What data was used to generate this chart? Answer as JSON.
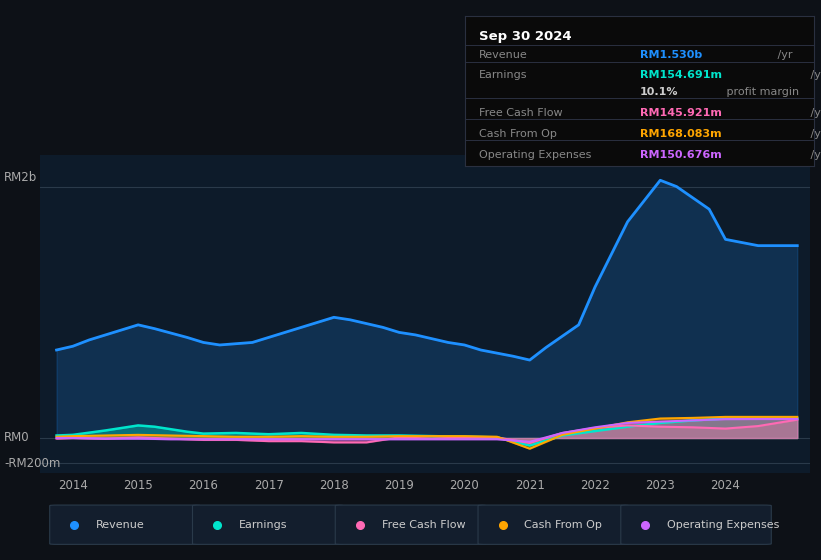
{
  "bg_color": "#0d1117",
  "chart_bg": "#0d1b2a",
  "title": "Sep 30 2024",
  "info_rows": [
    {
      "label": "Revenue",
      "value": "RM1.530b",
      "unit": " /yr",
      "value_color": "#1e90ff",
      "bold_value": true
    },
    {
      "label": "Earnings",
      "value": "RM154.691m",
      "unit": " /yr",
      "value_color": "#00e5cc",
      "bold_value": true
    },
    {
      "label": "",
      "value": "10.1%",
      "unit": " profit margin",
      "value_color": "#cccccc",
      "bold_value": true
    },
    {
      "label": "Free Cash Flow",
      "value": "RM145.921m",
      "unit": " /yr",
      "value_color": "#ff69b4",
      "bold_value": true
    },
    {
      "label": "Cash From Op",
      "value": "RM168.083m",
      "unit": " /yr",
      "value_color": "#ffa500",
      "bold_value": true
    },
    {
      "label": "Operating Expenses",
      "value": "RM150.676m",
      "unit": " /yr",
      "value_color": "#cc66ff",
      "bold_value": true
    }
  ],
  "ylabel_top": "RM2b",
  "ylabel_mid": "RM0",
  "ylabel_bot": "-RM200m",
  "xlim": [
    2013.5,
    2025.3
  ],
  "ylim_min": -0.28,
  "ylim_max": 2.25,
  "y_zero": 0.0,
  "y_top": 2.0,
  "y_bot": -0.2,
  "x_ticks": [
    2014,
    2015,
    2016,
    2017,
    2018,
    2019,
    2020,
    2021,
    2022,
    2023,
    2024
  ],
  "legend": [
    {
      "label": "Revenue",
      "color": "#1e90ff"
    },
    {
      "label": "Earnings",
      "color": "#00e5cc"
    },
    {
      "label": "Free Cash Flow",
      "color": "#ff69b4"
    },
    {
      "label": "Cash From Op",
      "color": "#ffa500"
    },
    {
      "label": "Operating Expenses",
      "color": "#cc66ff"
    }
  ],
  "revenue": {
    "x": [
      2013.75,
      2014.0,
      2014.25,
      2014.75,
      2015.0,
      2015.25,
      2015.75,
      2016.0,
      2016.25,
      2016.75,
      2017.0,
      2017.25,
      2017.75,
      2018.0,
      2018.25,
      2018.75,
      2019.0,
      2019.25,
      2019.75,
      2020.0,
      2020.25,
      2020.75,
      2021.0,
      2021.25,
      2021.75,
      2022.0,
      2022.5,
      2023.0,
      2023.25,
      2023.75,
      2024.0,
      2024.5,
      2025.1
    ],
    "y": [
      0.7,
      0.73,
      0.78,
      0.86,
      0.9,
      0.87,
      0.8,
      0.76,
      0.74,
      0.76,
      0.8,
      0.84,
      0.92,
      0.96,
      0.94,
      0.88,
      0.84,
      0.82,
      0.76,
      0.74,
      0.7,
      0.65,
      0.62,
      0.72,
      0.9,
      1.2,
      1.72,
      2.05,
      2.0,
      1.82,
      1.58,
      1.53,
      1.53
    ],
    "color": "#1e90ff",
    "lw": 2.0
  },
  "earnings": {
    "x": [
      2013.75,
      2014.0,
      2014.5,
      2015.0,
      2015.25,
      2015.75,
      2016.0,
      2016.5,
      2017.0,
      2017.5,
      2018.0,
      2018.5,
      2019.0,
      2019.5,
      2020.0,
      2020.5,
      2021.0,
      2021.5,
      2022.0,
      2022.5,
      2023.0,
      2023.5,
      2024.0,
      2024.5,
      2025.1
    ],
    "y": [
      0.02,
      0.025,
      0.06,
      0.1,
      0.09,
      0.05,
      0.035,
      0.04,
      0.03,
      0.04,
      0.025,
      0.02,
      0.02,
      0.015,
      0.01,
      0.005,
      -0.06,
      0.02,
      0.055,
      0.09,
      0.12,
      0.14,
      0.155,
      0.155,
      0.155
    ],
    "color": "#00e5cc",
    "lw": 1.8
  },
  "free_cash_flow": {
    "x": [
      2013.75,
      2014.0,
      2014.5,
      2015.0,
      2015.5,
      2016.0,
      2016.5,
      2017.0,
      2017.5,
      2018.0,
      2018.5,
      2019.0,
      2019.5,
      2020.0,
      2020.5,
      2021.0,
      2021.5,
      2022.0,
      2022.5,
      2023.0,
      2023.5,
      2024.0,
      2024.5,
      2025.1
    ],
    "y": [
      -0.005,
      0.0,
      -0.005,
      0.005,
      -0.005,
      -0.015,
      -0.015,
      -0.025,
      -0.025,
      -0.035,
      -0.035,
      0.005,
      -0.005,
      0.005,
      0.005,
      -0.04,
      0.04,
      0.08,
      0.1,
      0.09,
      0.085,
      0.075,
      0.095,
      0.146
    ],
    "color": "#ff69b4",
    "lw": 1.5
  },
  "cash_from_op": {
    "x": [
      2013.75,
      2014.0,
      2014.5,
      2015.0,
      2015.5,
      2016.0,
      2016.5,
      2017.0,
      2017.5,
      2018.0,
      2018.5,
      2019.0,
      2019.5,
      2020.0,
      2020.5,
      2021.0,
      2021.5,
      2022.0,
      2022.5,
      2023.0,
      2023.5,
      2024.0,
      2024.5,
      2025.1
    ],
    "y": [
      0.01,
      0.015,
      0.02,
      0.025,
      0.02,
      0.015,
      0.01,
      0.01,
      0.015,
      0.01,
      0.01,
      0.015,
      0.015,
      0.015,
      0.01,
      -0.085,
      0.025,
      0.075,
      0.125,
      0.155,
      0.16,
      0.168,
      0.168,
      0.168
    ],
    "color": "#ffa500",
    "lw": 1.5
  },
  "operating_expenses": {
    "x": [
      2013.75,
      2014.0,
      2014.5,
      2015.0,
      2015.5,
      2016.0,
      2016.5,
      2017.0,
      2017.5,
      2018.0,
      2018.5,
      2019.0,
      2019.5,
      2020.0,
      2020.5,
      2021.0,
      2021.5,
      2022.0,
      2022.5,
      2023.0,
      2023.5,
      2024.0,
      2024.5,
      2025.1
    ],
    "y": [
      0.0,
      0.0,
      -0.005,
      -0.005,
      -0.01,
      -0.01,
      -0.01,
      -0.01,
      -0.01,
      -0.01,
      -0.01,
      -0.01,
      -0.01,
      -0.01,
      -0.01,
      -0.03,
      0.04,
      0.085,
      0.12,
      0.13,
      0.14,
      0.15,
      0.151,
      0.151
    ],
    "color": "#cc66ff",
    "lw": 1.5
  }
}
